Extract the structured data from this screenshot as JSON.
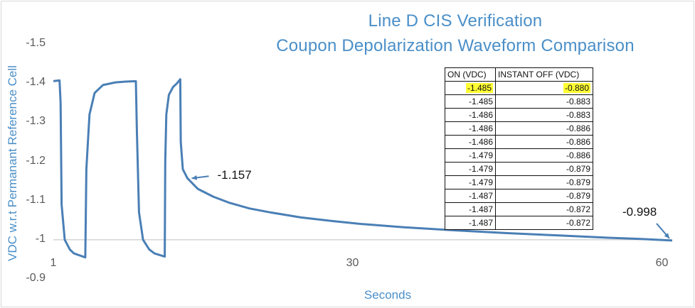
{
  "chart_data": {
    "type": "line",
    "title": "Line D CIS Verification",
    "subtitle": "Coupon Depolarization Waveform Comparison",
    "xlabel": "Seconds",
    "ylabel": "VDC w.r.t Permanant Reference Cell",
    "xlim": [
      1,
      61
    ],
    "ylim": [
      -1.5,
      -0.9
    ],
    "x_ticks": [
      "1",
      "30",
      "60"
    ],
    "y_ticks": [
      "-1.5",
      "-1.4",
      "-1.3",
      "-1.2",
      "-1.1",
      "-1",
      "-0.9"
    ],
    "y_reversed": true,
    "grid": false,
    "color": "#4a7fb5",
    "series": [
      {
        "values": [
          [
            1.0,
            -1.405
          ],
          [
            1.6,
            -1.407
          ],
          [
            1.7,
            -1.35
          ],
          [
            1.8,
            -1.09
          ],
          [
            2.1,
            -1.0
          ],
          [
            2.6,
            -0.975
          ],
          [
            3.0,
            -0.965
          ],
          [
            4.1,
            -0.955
          ],
          [
            4.2,
            -1.18
          ],
          [
            4.5,
            -1.32
          ],
          [
            5.0,
            -1.375
          ],
          [
            5.8,
            -1.395
          ],
          [
            7.0,
            -1.402
          ],
          [
            8.0,
            -1.404
          ],
          [
            9.0,
            -1.405
          ],
          [
            9.1,
            -1.28
          ],
          [
            9.3,
            -1.07
          ],
          [
            9.7,
            -1.0
          ],
          [
            10.3,
            -0.975
          ],
          [
            10.8,
            -0.965
          ],
          [
            11.8,
            -0.957
          ],
          [
            11.85,
            -1.2
          ],
          [
            11.95,
            -1.32
          ],
          [
            12.2,
            -1.37
          ],
          [
            12.6,
            -1.39
          ],
          [
            13.0,
            -1.4
          ],
          [
            13.3,
            -1.41
          ],
          [
            13.35,
            -1.25
          ],
          [
            13.55,
            -1.18
          ],
          [
            14.0,
            -1.157
          ],
          [
            15.0,
            -1.13
          ],
          [
            16.5,
            -1.11
          ],
          [
            18.0,
            -1.095
          ],
          [
            20.0,
            -1.08
          ],
          [
            22.0,
            -1.07
          ],
          [
            25.0,
            -1.057
          ],
          [
            28.0,
            -1.048
          ],
          [
            31.0,
            -1.04
          ],
          [
            35.0,
            -1.032
          ],
          [
            40.0,
            -1.024
          ],
          [
            45.0,
            -1.017
          ],
          [
            50.0,
            -1.011
          ],
          [
            55.0,
            -1.005
          ],
          [
            58.0,
            -1.002
          ],
          [
            61.0,
            -0.998
          ]
        ]
      }
    ],
    "annotations": [
      {
        "text": "-1.157",
        "x": 14.0,
        "y": -1.157
      },
      {
        "text": "-0.998",
        "x": 61.0,
        "y": -0.998
      }
    ],
    "table": {
      "columns": [
        "ON (VDC)",
        "INSTANT OFF (VDC)"
      ],
      "rows": [
        [
          "-1.485",
          "-0.880"
        ],
        [
          "-1.485",
          "-0.883"
        ],
        [
          "-1.486",
          "-0.883"
        ],
        [
          "-1.486",
          "-0.886"
        ],
        [
          "-1.486",
          "-0.886"
        ],
        [
          "-1.479",
          "-0.886"
        ],
        [
          "-1.479",
          "-0.879"
        ],
        [
          "-1.479",
          "-0.879"
        ],
        [
          "-1.487",
          "-0.879"
        ],
        [
          "-1.487",
          "-0.872"
        ],
        [
          "-1.487",
          "-0.872"
        ]
      ],
      "highlight_row": 0,
      "highlight_color": "#ffff33"
    }
  }
}
